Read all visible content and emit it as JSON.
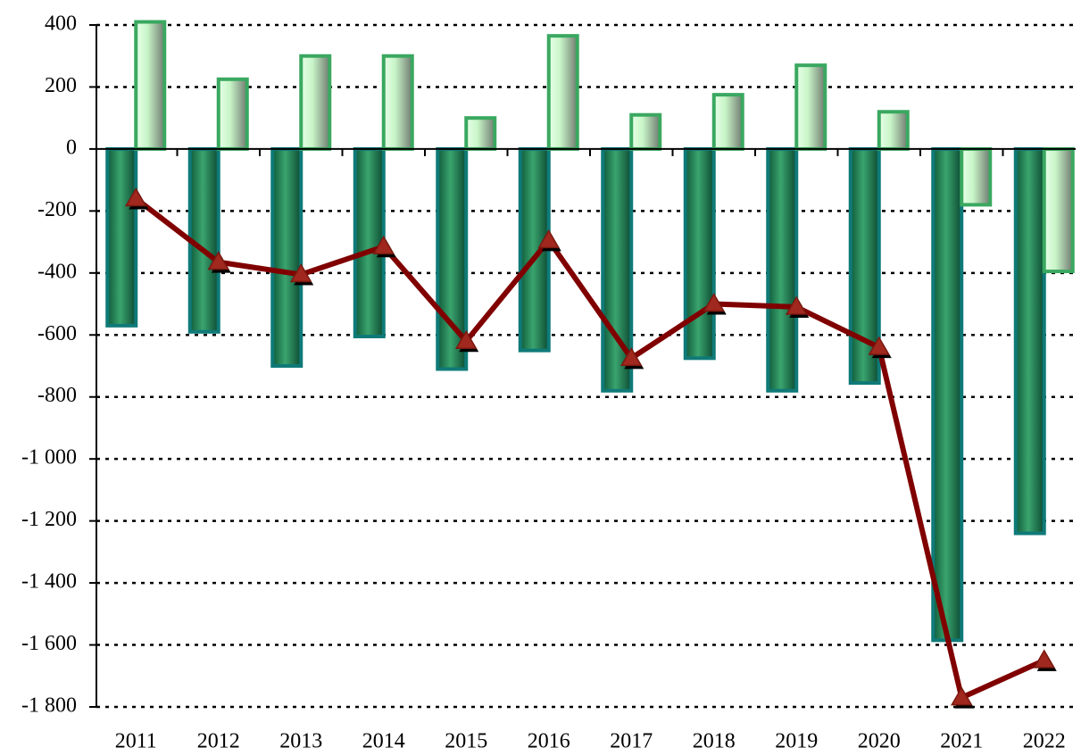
{
  "chart_data": {
    "type": "bar",
    "categories": [
      "2011",
      "2012",
      "2013",
      "2014",
      "2015",
      "2016",
      "2017",
      "2018",
      "2019",
      "2020",
      "2021",
      "2022"
    ],
    "series": [
      {
        "type": "bar",
        "color": "#1e7a52",
        "values": [
          -570,
          -590,
          -700,
          -605,
          -710,
          -650,
          -780,
          -675,
          -780,
          -755,
          -1585,
          -1240
        ]
      },
      {
        "type": "bar",
        "color": "#c8f5c8",
        "values": [
          410,
          225,
          300,
          300,
          100,
          365,
          110,
          175,
          270,
          120,
          -180,
          -395
        ]
      },
      {
        "type": "line",
        "color": "#800000",
        "values": [
          -160,
          -365,
          -405,
          -315,
          -620,
          -295,
          -675,
          -500,
          -510,
          -640,
          -1770,
          -1650
        ]
      }
    ],
    "ylim": [
      -1800,
      400
    ],
    "yticks": [
      400,
      200,
      0,
      -200,
      -400,
      -600,
      -800,
      {
        "value": -1000,
        "label": "-1 000"
      },
      {
        "value": -1200,
        "label": "-1 200"
      },
      {
        "value": -1400,
        "label": "-1 400"
      },
      {
        "value": -1600,
        "label": "-1 600"
      },
      {
        "value": -1800,
        "label": "-1 800"
      }
    ],
    "grid": true
  }
}
